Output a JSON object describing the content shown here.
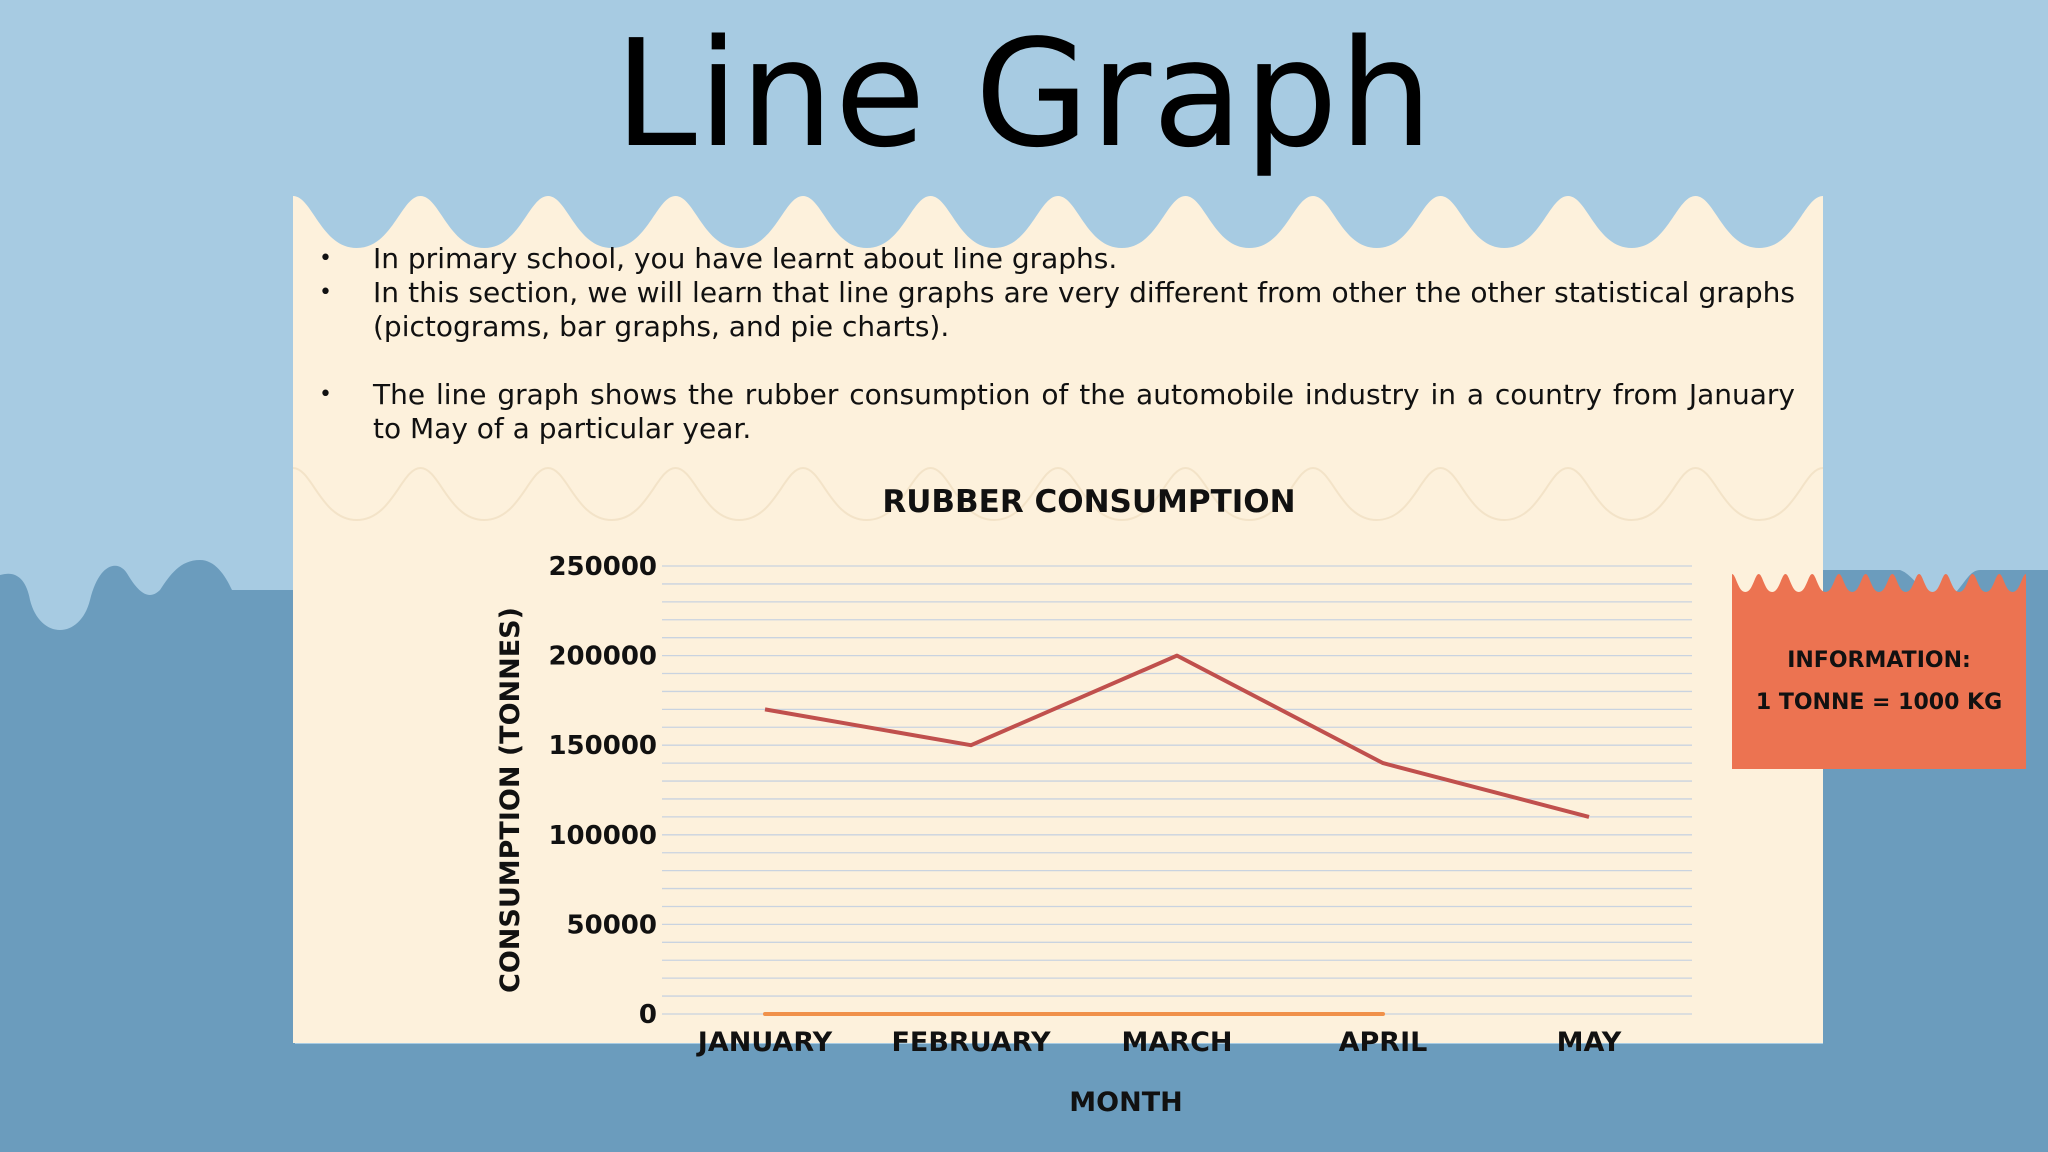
{
  "slide": {
    "title": "Line Graph",
    "bullets": [
      "In primary school, you have learnt about line graphs.",
      "In this section, we will learn that line graphs are very different from other the other statistical graphs (pictograms, bar graphs, and pie charts).",
      "The line graph shows the rubber consumption of the automobile industry in a country from January to May of a particular year."
    ],
    "info_box": {
      "line1": "INFORMATION:",
      "line2": "1 TONNE = 1000 KG"
    }
  },
  "colors": {
    "sky": "#a7cbe2",
    "sea": "#6b9cbd",
    "paper": "#fdf1dc",
    "info_box": "#ec7351",
    "line": "#c0504d",
    "baseline_accent": "#f0914a",
    "gridline": "#c9d3e0"
  },
  "chart_data": {
    "type": "line",
    "title": "RUBBER CONSUMPTION",
    "xlabel": "MONTH",
    "ylabel": "CONSUMPTION (TONNES)",
    "categories": [
      "JANUARY",
      "FEBRUARY",
      "MARCH",
      "APRIL",
      "MAY"
    ],
    "series": [
      {
        "values": [
          170000,
          150000,
          200000,
          140000,
          110000
        ]
      }
    ],
    "ylim": [
      0,
      250000
    ],
    "yticks": [
      "0",
      "50000",
      "100000",
      "150000",
      "200000",
      "250000"
    ],
    "grid": true,
    "legend": "none"
  }
}
